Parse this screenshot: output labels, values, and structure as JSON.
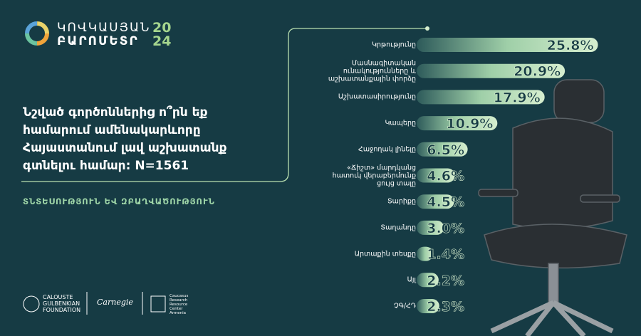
{
  "logo": {
    "line1": "ԿՈՎԿԱՍՅԱՆ",
    "line2": "ԲԱՐՈՄԵՏՐ",
    "year1": "20",
    "year2": "24"
  },
  "footer": {
    "gulbenkian": "CALOUSTE\nGULBENKIAN\nFOUNDATION",
    "carnegie": "Carnegie",
    "crrc": "Caucasus\nResearch\nResource\nCenter\nArmenia"
  },
  "chart_data": {
    "type": "bar",
    "orientation": "horizontal",
    "title": "Նշված գործոններից ո՞րն եք համարում ամենակարևորը Հայաստանում լավ աշխատանք գտնելու համար: N=1561",
    "subtitle": "ՏՆՏԵՍՈՒԹՅՈՒՆ ԵՎ ԶԲԱՂՎԱԾՈՒԹՅՈՒՆ",
    "categories": [
      "Կրթությունը",
      "Մասնագիտական\nունակությունները և\nաշխատանքային փորձը",
      "Աշխատասիրությունը",
      "Կապերը",
      "Հաջողակ լինելը",
      "«Ճիշտ» մարդկանց\nհատուկ վերաբերմունք\nցույց տալը",
      "Տարիքը",
      "Տաղանդը",
      "Արտաքին տեսքը",
      "Այլ",
      "ՉԳ/ՀԴ"
    ],
    "values": [
      25.8,
      20.9,
      17.9,
      10.9,
      6.5,
      4.6,
      4.5,
      3.0,
      1.4,
      2.2,
      2.3
    ],
    "value_labels": [
      "25.8%",
      "20.9%",
      "17.9%",
      "10.9%",
      "6.5%",
      "4.6%",
      "4.5%",
      "3.0%",
      "1.4%",
      "2.2%",
      "2.3%"
    ],
    "xlim": [
      0,
      26
    ],
    "color": "#c9e8c8"
  }
}
